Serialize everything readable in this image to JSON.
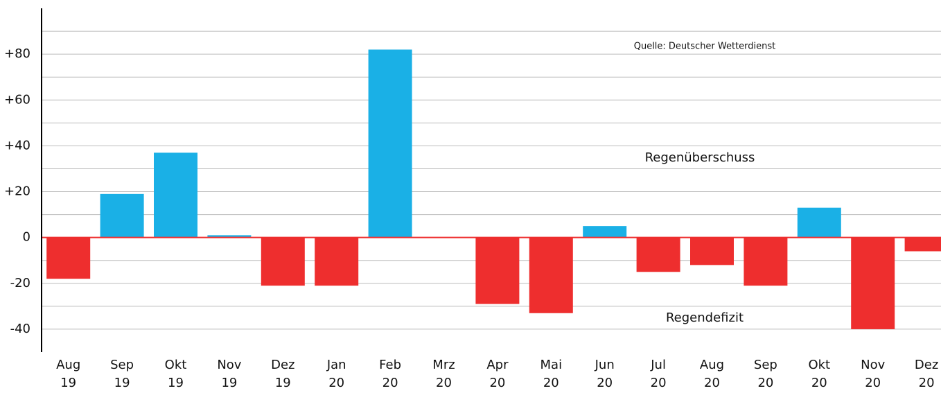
{
  "chart_data": {
    "type": "bar",
    "categories": [
      [
        "Aug",
        "19"
      ],
      [
        "Sep",
        "19"
      ],
      [
        "Okt",
        "19"
      ],
      [
        "Nov",
        "19"
      ],
      [
        "Dez",
        "19"
      ],
      [
        "Jan",
        "20"
      ],
      [
        "Feb",
        "20"
      ],
      [
        "Mrz",
        "20"
      ],
      [
        "Apr",
        "20"
      ],
      [
        "Mai",
        "20"
      ],
      [
        "Jun",
        "20"
      ],
      [
        "Jul",
        "20"
      ],
      [
        "Aug",
        "20"
      ],
      [
        "Sep",
        "20"
      ],
      [
        "Okt",
        "20"
      ],
      [
        "Nov",
        "20"
      ],
      [
        "Dez",
        "20"
      ]
    ],
    "values": [
      -18,
      19,
      37,
      1,
      -21,
      -21,
      82,
      0,
      -29,
      -33,
      5,
      -15,
      -12,
      -21,
      13,
      -40,
      -6
    ],
    "positive_color": "#1ab0e6",
    "negative_color": "#ee2e2e",
    "ylim": [
      -50,
      100
    ],
    "yticks": [
      -40,
      -20,
      0,
      {
        "value": 20,
        "label": "+20"
      },
      {
        "value": 40,
        "label": "+40"
      },
      {
        "value": 60,
        "label": "+60"
      },
      {
        "value": 80,
        "label": "+80"
      }
    ],
    "yminor": [
      -30,
      -10,
      10,
      30,
      50,
      70,
      90
    ],
    "grid": true,
    "annotations": [
      "Quelle: Deutscher Wetterdienst",
      "Regenüberschuss",
      "Regendefizit"
    ]
  }
}
